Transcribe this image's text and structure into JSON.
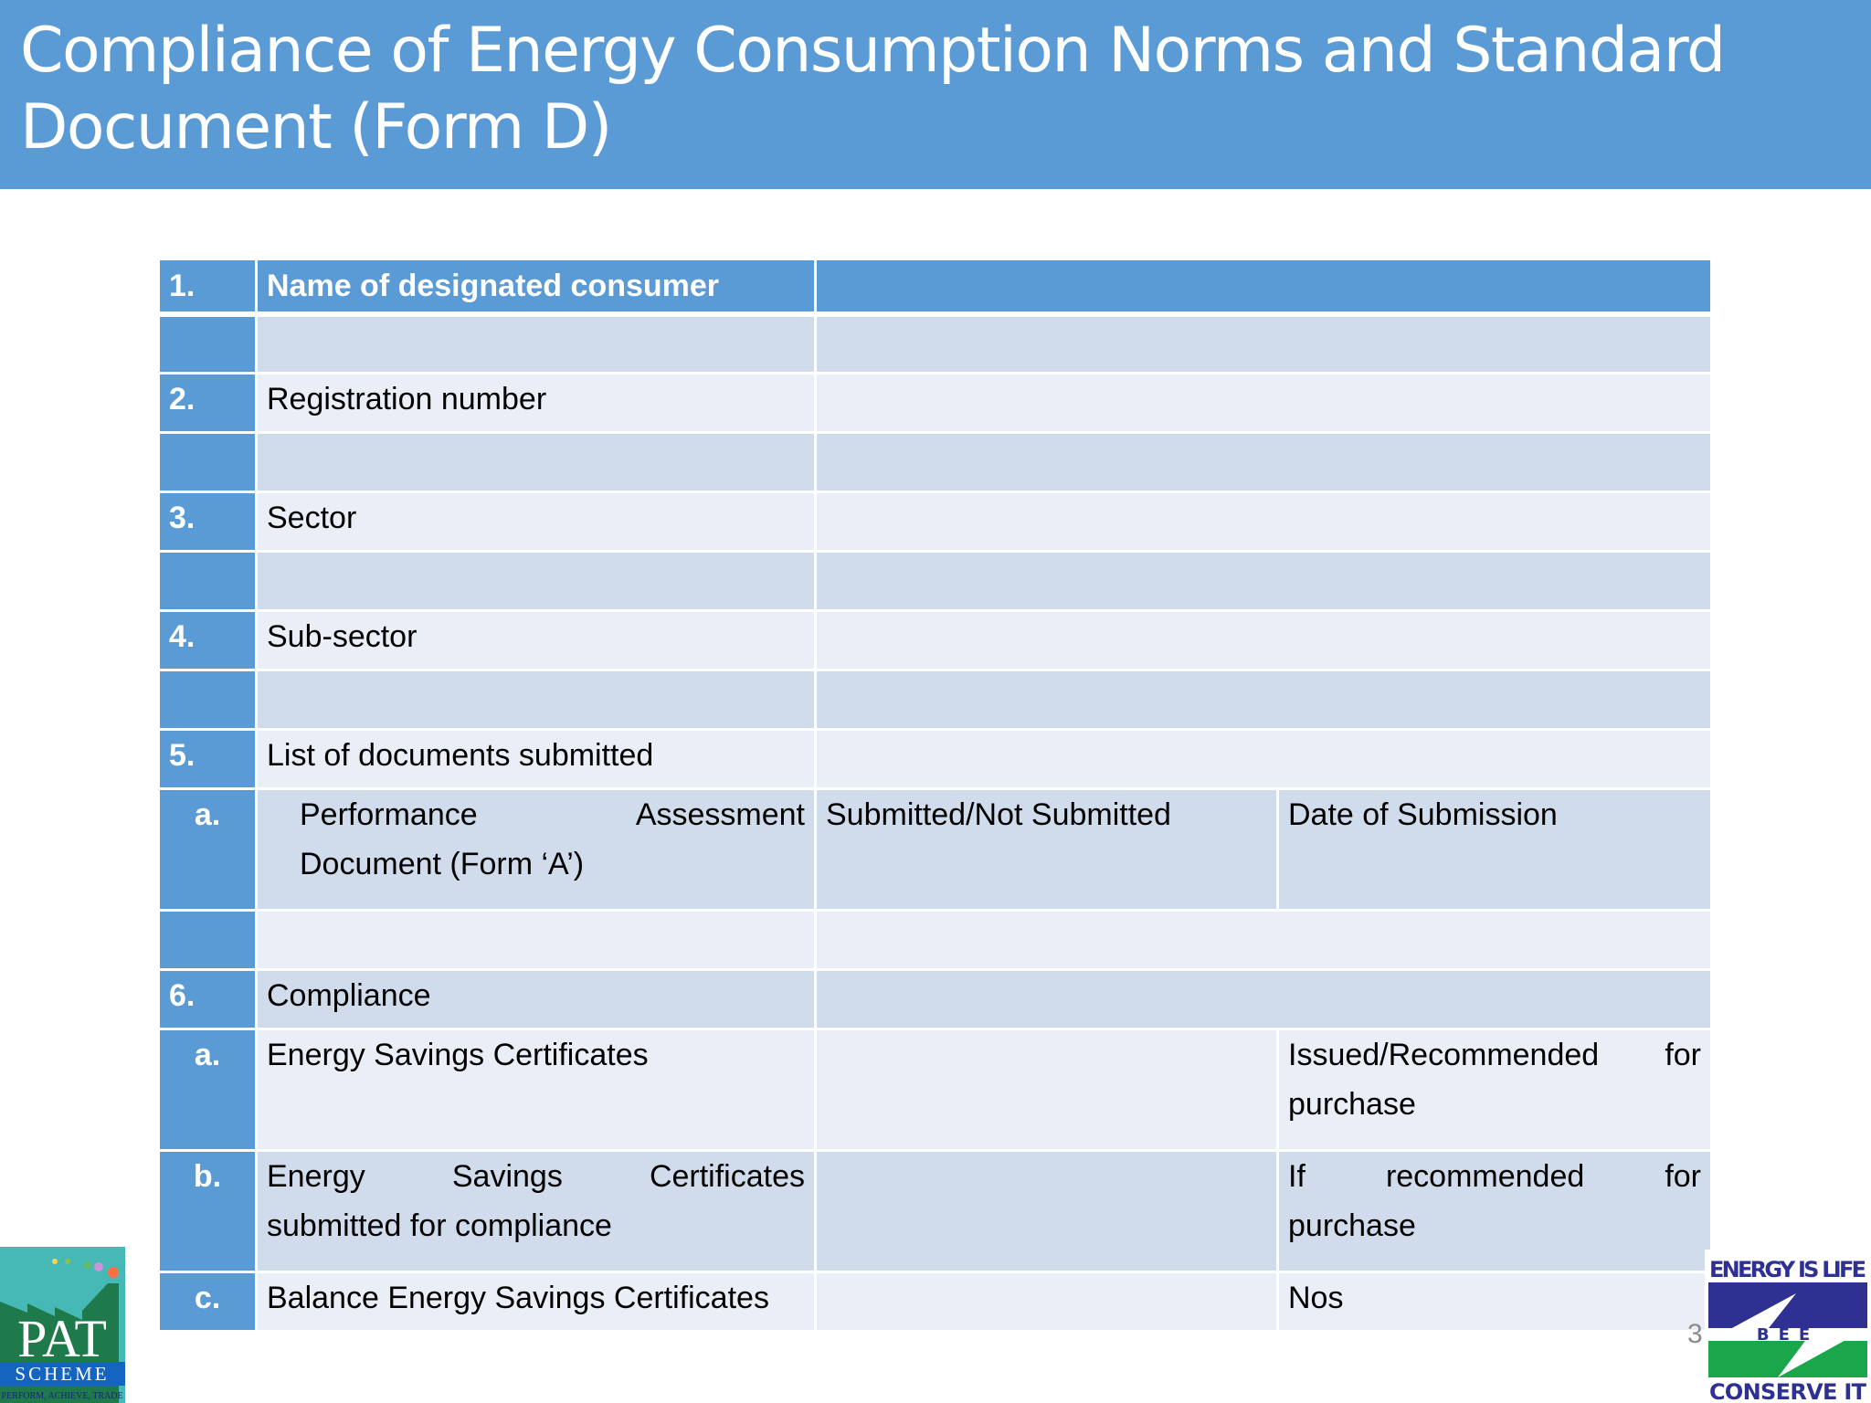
{
  "title": "Compliance of Energy Consumption Norms and Standard Document (Form D)",
  "page_number": "3",
  "logos": {
    "pat": "PAT SCHEME PERFORM, ACHIEVE, TRADE",
    "bee": "ENERGY IS LIFE BEE CONSERVE IT"
  },
  "colors": {
    "header": "#5b9bd5",
    "row_dark": "#d0dcec",
    "row_light": "#e9eef7"
  },
  "table": {
    "rows": [
      {
        "style": "hdr",
        "h": 60,
        "cells": [
          {
            "t": "1."
          },
          {
            "t": "Name of designated consumer"
          },
          {
            "t": "",
            "span": 2
          }
        ]
      },
      {
        "style": "dark",
        "h": 65,
        "cells": [
          {
            "t": ""
          },
          {
            "t": ""
          },
          {
            "t": "",
            "span": 2
          }
        ]
      },
      {
        "style": "light",
        "h": 65,
        "cells": [
          {
            "t": "2."
          },
          {
            "t": "Registration number"
          },
          {
            "t": "",
            "span": 2
          }
        ]
      },
      {
        "style": "dark",
        "h": 65,
        "cells": [
          {
            "t": ""
          },
          {
            "t": ""
          },
          {
            "t": "",
            "span": 2
          }
        ]
      },
      {
        "style": "light",
        "h": 65,
        "cells": [
          {
            "t": "3."
          },
          {
            "t": "Sector"
          },
          {
            "t": "",
            "span": 2
          }
        ]
      },
      {
        "style": "dark",
        "h": 65,
        "cells": [
          {
            "t": ""
          },
          {
            "t": ""
          },
          {
            "t": "",
            "span": 2
          }
        ]
      },
      {
        "style": "light",
        "h": 65,
        "cells": [
          {
            "t": "4."
          },
          {
            "t": "Sub-sector"
          },
          {
            "t": "",
            "span": 2
          }
        ]
      },
      {
        "style": "dark",
        "h": 65,
        "cells": [
          {
            "t": ""
          },
          {
            "t": ""
          },
          {
            "t": "",
            "span": 2
          }
        ]
      },
      {
        "style": "light",
        "h": 65,
        "cells": [
          {
            "t": "5."
          },
          {
            "t": "List of documents  submitted"
          },
          {
            "t": "",
            "span": 2
          }
        ]
      },
      {
        "style": "dark",
        "h": 133,
        "cells": [
          {
            "t": "a.",
            "sub": true
          },
          {
            "t": "Performance Assessment",
            "t2": "Document (Form ‘A’)",
            "indent": true
          },
          {
            "t": "Submitted/Not Submitted"
          },
          {
            "t": "Date of Submission"
          }
        ]
      },
      {
        "style": "light",
        "h": 65,
        "cells": [
          {
            "t": ""
          },
          {
            "t": ""
          },
          {
            "t": "",
            "span": 2
          }
        ]
      },
      {
        "style": "dark",
        "h": 65,
        "cells": [
          {
            "t": "6."
          },
          {
            "t": "Compliance"
          },
          {
            "t": "",
            "span": 2
          }
        ]
      },
      {
        "style": "light",
        "h": 133,
        "cells": [
          {
            "t": "a.",
            "sub": true
          },
          {
            "t": "Energy Savings Certificates"
          },
          {
            "t": ""
          },
          {
            "t": "Issued/Recommended for",
            "t2": "purchase"
          }
        ]
      },
      {
        "style": "dark",
        "h": 133,
        "cells": [
          {
            "t": "b.",
            "sub": true
          },
          {
            "t": "Energy Savings Certificates",
            "t2": "submitted for compliance"
          },
          {
            "t": ""
          },
          {
            "t": "If recommended for",
            "t2": "purchase"
          }
        ]
      },
      {
        "style": "light",
        "h": 65,
        "cells": [
          {
            "t": "c.",
            "sub": true
          },
          {
            "t": "Balance Energy Savings Certificates"
          },
          {
            "t": ""
          },
          {
            "t": "Nos"
          }
        ]
      }
    ]
  }
}
